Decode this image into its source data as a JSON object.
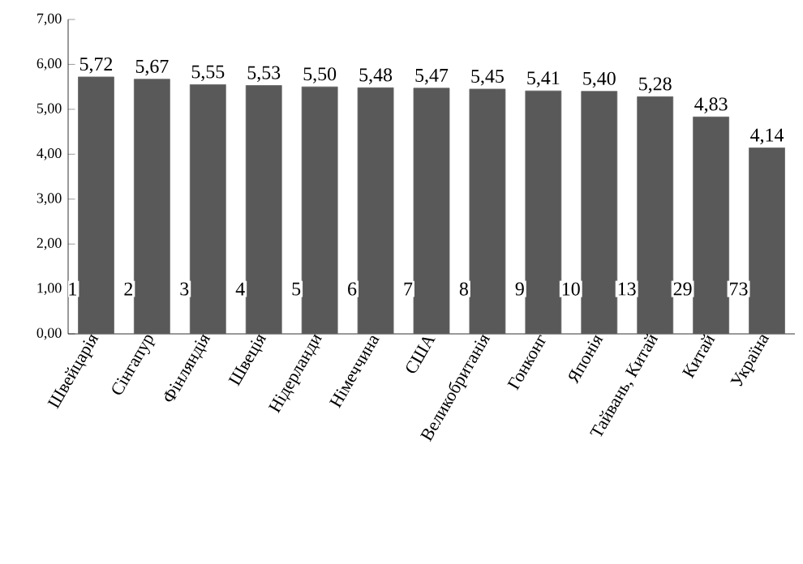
{
  "chart_data": {
    "type": "bar",
    "categories": [
      "Швейцарія",
      "Сінгапур",
      "Фінляндія",
      "Швеція",
      "Нідерланди",
      "Німеччина",
      "США",
      "Великобританія",
      "Гонконг",
      "Японія",
      "Тайвань, Китай",
      "Китай",
      "Україна"
    ],
    "values": [
      5.72,
      5.67,
      5.55,
      5.53,
      5.5,
      5.48,
      5.47,
      5.45,
      5.41,
      5.4,
      5.28,
      4.83,
      4.14
    ],
    "value_labels": [
      "5,72",
      "5,67",
      "5,55",
      "5,53",
      "5,50",
      "5,48",
      "5,47",
      "5,45",
      "5,41",
      "5,40",
      "5,28",
      "4,83",
      "4,14"
    ],
    "color": "#595959",
    "ylim": [
      0,
      7
    ],
    "yticks": [
      {
        "value": 0,
        "label": "0,00"
      },
      {
        "value": 1,
        "label": "1,00"
      },
      {
        "value": 2,
        "label": "2,00"
      },
      {
        "value": 3,
        "label": "3,00"
      },
      {
        "value": 4,
        "label": "4,00"
      },
      {
        "value": 5,
        "label": "5,00"
      },
      {
        "value": 6,
        "label": "6,00"
      },
      {
        "value": 7,
        "label": "7,00"
      }
    ],
    "annotations": [
      "1",
      "2",
      "3",
      "4",
      "5",
      "6",
      "7",
      "8",
      "9",
      "10",
      "13",
      "29",
      "73"
    ],
    "grid": false
  }
}
